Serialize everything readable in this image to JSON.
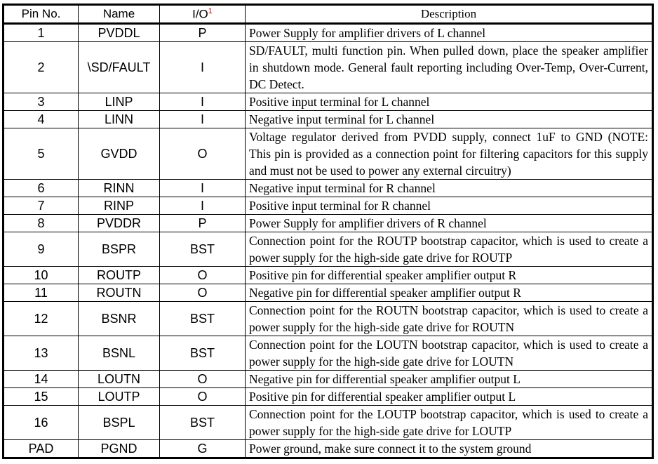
{
  "headers": {
    "pin": "Pin No.",
    "name": "Name",
    "io": "I/O",
    "io_note": "1",
    "desc": "Description"
  },
  "rows": [
    {
      "pin": "1",
      "name": "PVDDL",
      "io": "P",
      "desc": "Power Supply for amplifier drivers of L channel"
    },
    {
      "pin": "2",
      "name": "\\SD/FAULT",
      "io": "I",
      "desc": "SD/FAULT, multi function pin. When pulled down, place the speaker amplifier in shutdown mode. General fault reporting including Over-Temp, Over-Current, DC Detect."
    },
    {
      "pin": "3",
      "name": "LINP",
      "io": "I",
      "desc": "Positive input terminal for L channel"
    },
    {
      "pin": "4",
      "name": "LINN",
      "io": "I",
      "desc": "Negative input terminal for L channel"
    },
    {
      "pin": "5",
      "name": "GVDD",
      "io": "O",
      "desc": "Voltage regulator derived from PVDD supply, connect 1uF to GND (NOTE: This pin is provided as a connection point for filtering capacitors for this supply and must not be used to power any external circuitry)"
    },
    {
      "pin": "6",
      "name": "RINN",
      "io": "I",
      "desc": "Negative input terminal for R channel"
    },
    {
      "pin": "7",
      "name": "RINP",
      "io": "I",
      "desc": "Positive input terminal for R channel"
    },
    {
      "pin": "8",
      "name": "PVDDR",
      "io": "P",
      "desc": "Power Supply for amplifier drivers of R channel"
    },
    {
      "pin": "9",
      "name": "BSPR",
      "io": "BST",
      "desc": "Connection point for the ROUTP bootstrap capacitor, which is used to create a power supply for the high-side gate drive for ROUTP"
    },
    {
      "pin": "10",
      "name": "ROUTP",
      "io": "O",
      "desc": "Positive pin for differential speaker amplifier output R"
    },
    {
      "pin": "11",
      "name": "ROUTN",
      "io": "O",
      "desc": "Negative pin for differential speaker amplifier output R"
    },
    {
      "pin": "12",
      "name": "BSNR",
      "io": "BST",
      "desc": "Connection point for the ROUTN bootstrap capacitor, which is used to create a power supply for the high-side gate drive for ROUTN"
    },
    {
      "pin": "13",
      "name": "BSNL",
      "io": "BST",
      "desc": "Connection point for the LOUTN bootstrap capacitor, which is used to create a power supply for the high-side gate drive for LOUTN"
    },
    {
      "pin": "14",
      "name": "LOUTN",
      "io": "O",
      "desc": "Negative pin for differential speaker amplifier output L"
    },
    {
      "pin": "15",
      "name": "LOUTP",
      "io": "O",
      "desc": "Positive pin for differential speaker amplifier output L"
    },
    {
      "pin": "16",
      "name": "BSPL",
      "io": "BST",
      "desc": "Connection point for the LOUTP bootstrap capacitor, which is used to create a power supply for the high-side gate drive for LOUTP"
    },
    {
      "pin": "PAD",
      "name": "PGND",
      "io": "G",
      "desc": "Power ground, make sure connect it to the system ground"
    }
  ]
}
